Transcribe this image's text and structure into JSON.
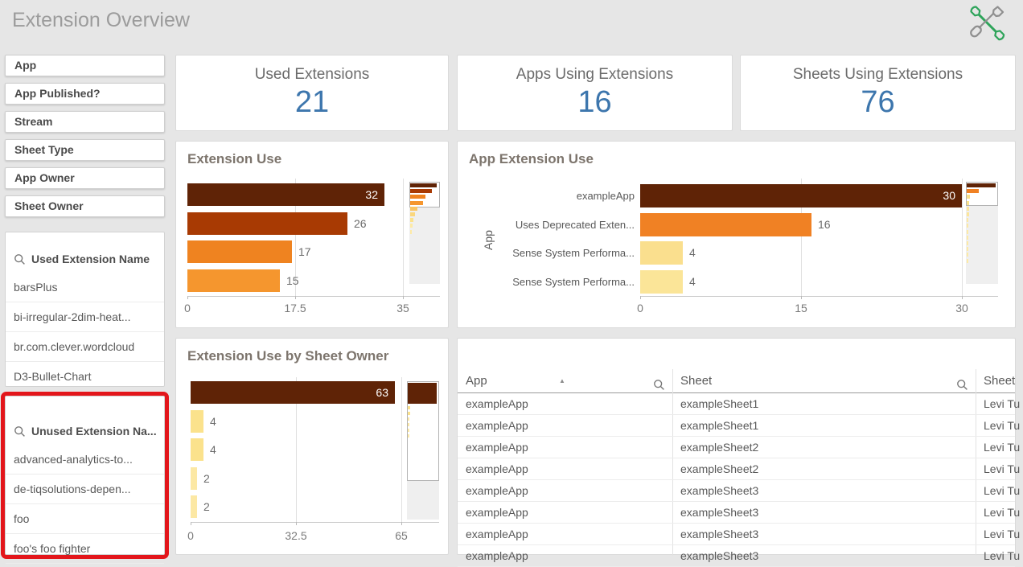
{
  "page": {
    "title": "Extension Overview"
  },
  "header": {
    "tools_icon": "wrench-and-screwdriver"
  },
  "colors": {
    "page_background": "#e6e6e6",
    "kpi_value": "#3d76ad",
    "highlight_border": "#e3161b",
    "bar_palette_dark_to_light": [
      "#5f2306",
      "#a83a03",
      "#ef8320",
      "#f5962e",
      "#fbe28c"
    ]
  },
  "sidebar": {
    "filters": [
      "App",
      "App Published?",
      "Stream",
      "Sheet Type",
      "App Owner",
      "Sheet Owner"
    ],
    "listboxes": [
      {
        "title": "Used Extension Name",
        "highlighted": false,
        "items": [
          "barsPlus",
          "bi-irregular-2dim-heat...",
          "br.com.clever.wordcloud",
          "D3-Bullet-Chart"
        ]
      },
      {
        "title": "Unused Extension Na...",
        "highlighted": true,
        "items": [
          "advanced-analytics-to...",
          "de-tiqsolutions-depen...",
          "foo",
          "foo's foo fighter"
        ]
      }
    ]
  },
  "kpis": [
    {
      "label": "Used Extensions",
      "value": "21"
    },
    {
      "label": "Apps Using Extensions",
      "value": "16"
    },
    {
      "label": "Sheets Using Extensions",
      "value": "76"
    }
  ],
  "chart_data": [
    {
      "type": "bar",
      "orientation": "horizontal",
      "title": "Extension Use",
      "values": [
        32,
        26,
        17,
        15
      ],
      "bar_colors": [
        "#5f2306",
        "#a83a03",
        "#ef8320",
        "#f5962e"
      ],
      "label_inside": [
        true,
        false,
        false,
        false
      ],
      "xlim": [
        0,
        35
      ],
      "xticks": [
        {
          "label": "0",
          "pos": 0
        },
        {
          "label": "17.5",
          "pos": 0.5
        },
        {
          "label": "35",
          "pos": 1
        }
      ],
      "scroll_overview": {
        "window_ratio": 0.25,
        "bars": [
          {
            "w": 0.96,
            "c": "#5f2306"
          },
          {
            "w": 0.8,
            "c": "#a83a03"
          },
          {
            "w": 0.55,
            "c": "#ef8320"
          },
          {
            "w": 0.48,
            "c": "#f5962e"
          },
          {
            "w": 0.26,
            "c": "#f9c463"
          },
          {
            "w": 0.18,
            "c": "#fbd77d"
          },
          {
            "w": 0.12,
            "c": "#fbe28c"
          },
          {
            "w": 0.08,
            "c": "#fdeaa6"
          },
          {
            "w": 0.05,
            "c": "#fdeaa6"
          }
        ]
      }
    },
    {
      "type": "bar",
      "orientation": "horizontal",
      "title": "App Extension Use",
      "ylabel": "App",
      "categories": [
        "exampleApp",
        "Uses Deprecated Exten...",
        "Sense System Performa...",
        "Sense System Performa..."
      ],
      "values": [
        30,
        16,
        4,
        4
      ],
      "bar_colors": [
        "#5f2306",
        "#f08124",
        "#fadf8e",
        "#fbe598"
      ],
      "label_inside": [
        true,
        false,
        false,
        false
      ],
      "xlim": [
        0,
        30
      ],
      "xticks": [
        {
          "label": "0",
          "pos": 0
        },
        {
          "label": "15",
          "pos": 0.5
        },
        {
          "label": "30",
          "pos": 1
        }
      ],
      "scroll_overview": {
        "window_ratio": 0.24,
        "bars": [
          {
            "w": 1.0,
            "c": "#5f2306"
          },
          {
            "w": 0.42,
            "c": "#f08124"
          },
          {
            "w": 0.1,
            "c": "#fbe28c"
          },
          {
            "w": 0.08,
            "c": "#fbe28c"
          },
          {
            "w": 0.07,
            "c": "#fce59b"
          },
          {
            "w": 0.07,
            "c": "#fce59b"
          },
          {
            "w": 0.06,
            "c": "#fce8a4"
          },
          {
            "w": 0.06,
            "c": "#fce8a4"
          },
          {
            "w": 0.05,
            "c": "#fdeaa6"
          },
          {
            "w": 0.05,
            "c": "#fdeaa6"
          },
          {
            "w": 0.05,
            "c": "#fdeaa6"
          },
          {
            "w": 0.04,
            "c": "#fdeaa6"
          },
          {
            "w": 0.04,
            "c": "#fdeaa6"
          },
          {
            "w": 0.04,
            "c": "#fdeaa6"
          }
        ]
      }
    },
    {
      "type": "bar",
      "orientation": "horizontal",
      "title": "Extension Use by Sheet Owner",
      "values": [
        63,
        4,
        4,
        2,
        2
      ],
      "bar_colors": [
        "#5f2306",
        "#fbe28c",
        "#fbe28c",
        "#fce8a4",
        "#fce8a4"
      ],
      "label_inside": [
        true,
        false,
        false,
        false,
        false
      ],
      "xlim": [
        0,
        65
      ],
      "xticks": [
        {
          "label": "0",
          "pos": 0
        },
        {
          "label": "32.5",
          "pos": 0.5
        },
        {
          "label": "65",
          "pos": 1
        }
      ],
      "scroll_overview": {
        "window_ratio": 0.72,
        "bars": [
          {
            "w": 1.0,
            "h": 26,
            "c": "#5f2306"
          },
          {
            "w": 0.08,
            "h": 4,
            "c": "#fbe28c"
          },
          {
            "w": 0.08,
            "h": 4,
            "c": "#fbe28c"
          },
          {
            "w": 0.05,
            "h": 4,
            "c": "#fce8a4"
          },
          {
            "w": 0.05,
            "h": 4,
            "c": "#fce8a4"
          },
          {
            "w": 0.04,
            "h": 4,
            "c": "#fdeaa6"
          },
          {
            "w": 0.04,
            "h": 4,
            "c": "#fdeaa6"
          }
        ]
      }
    }
  ],
  "table": {
    "columns": [
      {
        "label": "App",
        "search_icon": true,
        "sorted": "asc"
      },
      {
        "label": "Sheet",
        "search_icon": true,
        "sorted": null
      },
      {
        "label": "Sheet",
        "search_icon": false,
        "sorted": null
      }
    ],
    "rows": [
      [
        "exampleApp",
        "exampleSheet1",
        "Levi Tu"
      ],
      [
        "exampleApp",
        "exampleSheet1",
        "Levi Tu"
      ],
      [
        "exampleApp",
        "exampleSheet2",
        "Levi Tu"
      ],
      [
        "exampleApp",
        "exampleSheet2",
        "Levi Tu"
      ],
      [
        "exampleApp",
        "exampleSheet3",
        "Levi Tu"
      ],
      [
        "exampleApp",
        "exampleSheet3",
        "Levi Tu"
      ],
      [
        "exampleApp",
        "exampleSheet3",
        "Levi Tu"
      ],
      [
        "exampleApp",
        "exampleSheet3",
        "Levi Tu"
      ]
    ]
  }
}
